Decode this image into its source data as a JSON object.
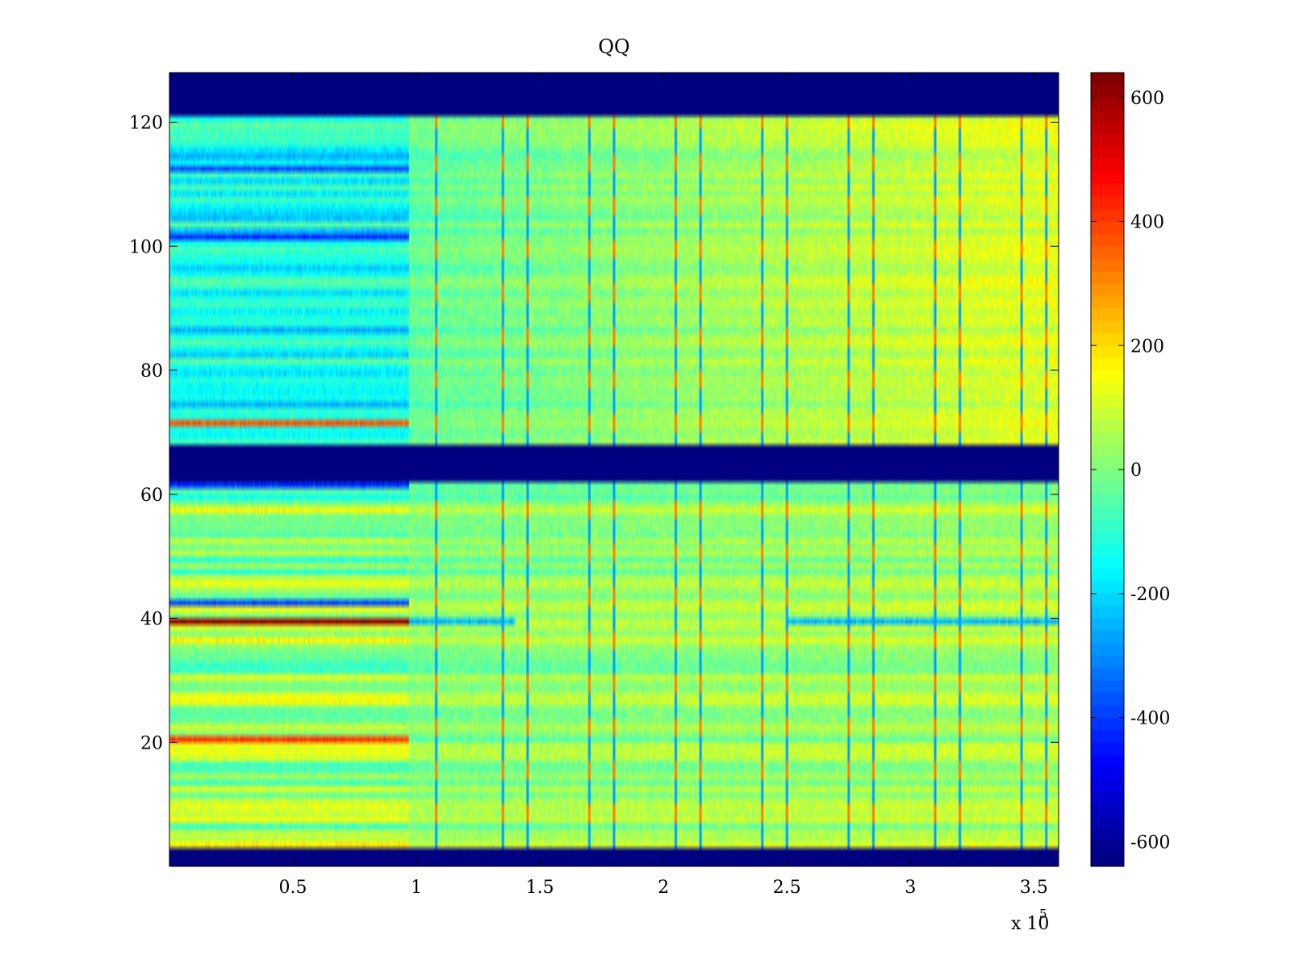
{
  "chart_data": {
    "type": "heatmap",
    "title": "QQ",
    "xlabel": "",
    "ylabel": "",
    "colormap": "jet",
    "x_range": [
      0,
      360000
    ],
    "y_range": [
      0,
      128
    ],
    "x_ticks": [
      0.5,
      1,
      1.5,
      2,
      2.5,
      3,
      3.5
    ],
    "x_tick_labels": [
      "0.5",
      "1",
      "1.5",
      "2",
      "2.5",
      "3",
      "3.5"
    ],
    "x_multiplier": {
      "base": "x 10",
      "exponent": "5"
    },
    "y_ticks": [
      20,
      40,
      60,
      80,
      100,
      120
    ],
    "y_tick_labels": [
      "20",
      "40",
      "60",
      "80",
      "100",
      "120"
    ],
    "colorbar": {
      "range": [
        -640,
        640
      ],
      "ticks": [
        -600,
        -400,
        -200,
        0,
        200,
        400,
        600
      ],
      "tick_labels": [
        "-600",
        "-400",
        "-200",
        "0",
        "200",
        "400",
        "600"
      ]
    },
    "masked_row_bands": [
      [
        0,
        3
      ],
      [
        62,
        68
      ],
      [
        121,
        128
      ]
    ],
    "masked_value": -640,
    "transition_x": 97000,
    "vertical_stripe_x": [
      108000,
      135000,
      145000,
      170000,
      180000,
      205000,
      215000,
      240000,
      250000,
      275000,
      285000,
      310000,
      320000,
      345000,
      355000
    ],
    "highlight_rows": [
      {
        "row": 39,
        "left_value": 620
      },
      {
        "row": 20,
        "left_value": 420
      },
      {
        "row": 71,
        "left_value": 380
      },
      {
        "row": 101,
        "left_value": -430
      },
      {
        "row": 112,
        "left_value": -380
      },
      {
        "row": 61,
        "left_value": -420
      },
      {
        "row": 42,
        "left_value": -400
      }
    ]
  }
}
